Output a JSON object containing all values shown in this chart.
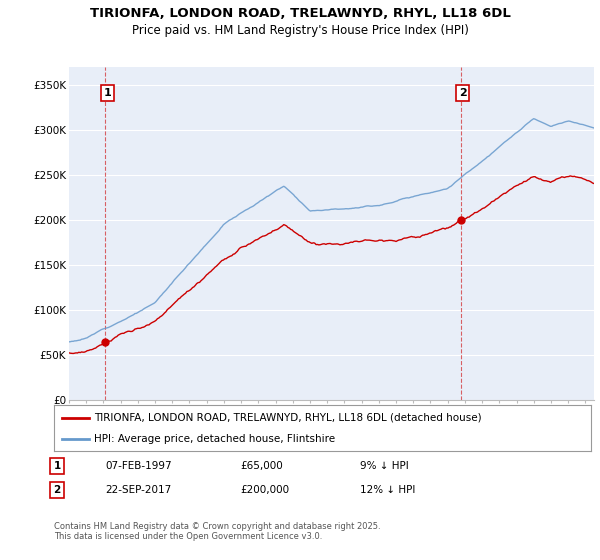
{
  "title": "TIRIONFA, LONDON ROAD, TRELAWNYD, RHYL, LL18 6DL",
  "subtitle": "Price paid vs. HM Land Registry's House Price Index (HPI)",
  "property_label": "TIRIONFA, LONDON ROAD, TRELAWNYD, RHYL, LL18 6DL (detached house)",
  "hpi_label": "HPI: Average price, detached house, Flintshire",
  "sale1_date": "07-FEB-1997",
  "sale1_price": 65000,
  "sale1_hpi_text": "9% ↓ HPI",
  "sale2_date": "22-SEP-2017",
  "sale2_price": 200000,
  "sale2_hpi_text": "12% ↓ HPI",
  "footer": "Contains HM Land Registry data © Crown copyright and database right 2025.\nThis data is licensed under the Open Government Licence v3.0.",
  "property_color": "#cc0000",
  "hpi_color": "#6699cc",
  "background_color": "#e8eef8",
  "ylim": [
    0,
    370000
  ],
  "yticks": [
    0,
    50000,
    100000,
    150000,
    200000,
    250000,
    300000,
    350000
  ],
  "ytick_labels": [
    "£0",
    "£50K",
    "£100K",
    "£150K",
    "£200K",
    "£250K",
    "£300K",
    "£350K"
  ],
  "sale1_t": 1997.1,
  "sale2_t": 2017.75,
  "xmin": 1995,
  "xmax": 2025.5
}
